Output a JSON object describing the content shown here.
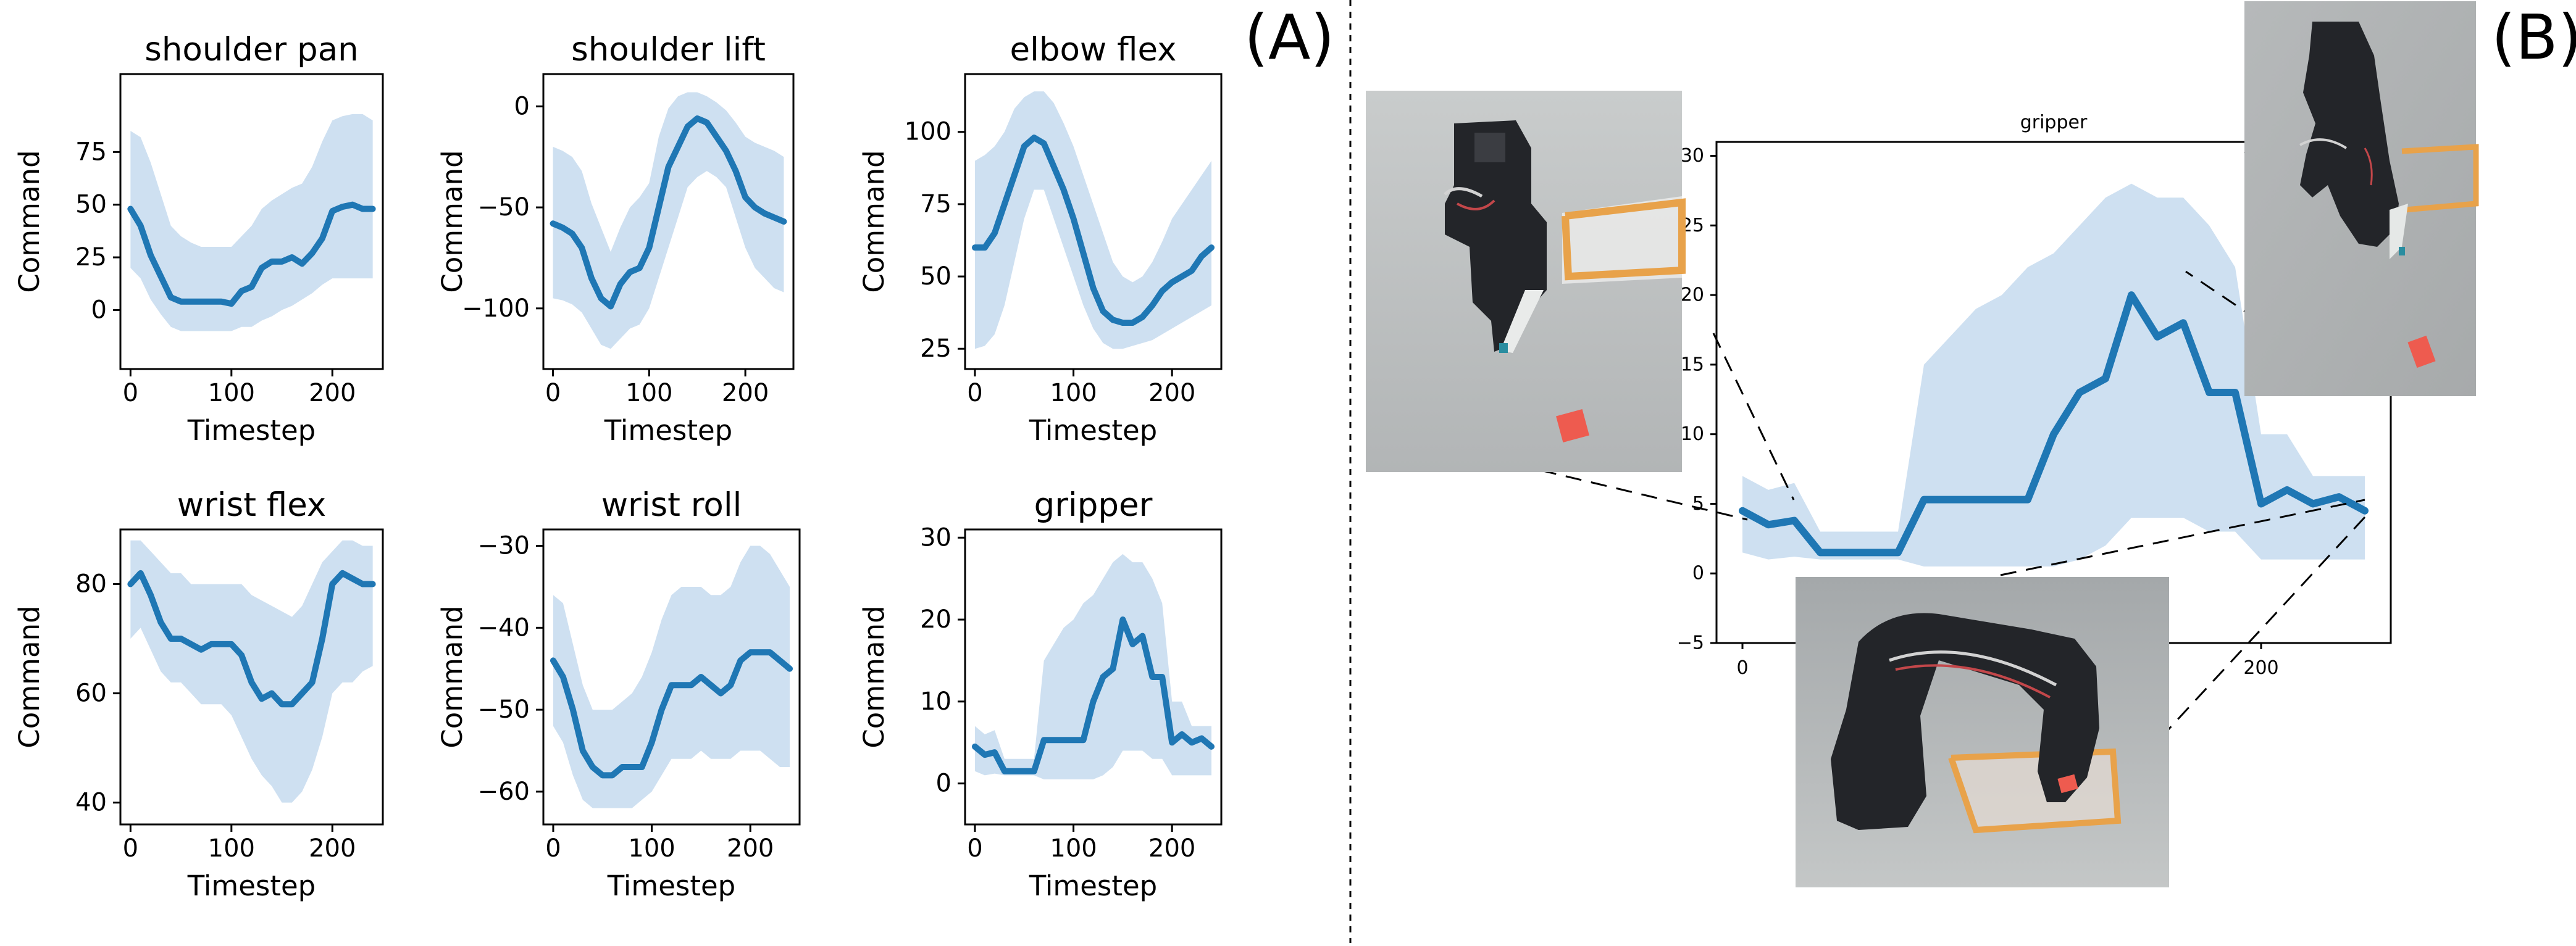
{
  "panel_labels": [
    "(A)",
    "(B)"
  ],
  "photos": [
    "robot-arm-start-photo",
    "robot-arm-grasp-photo",
    "robot-arm-lift-photo"
  ],
  "colors": {
    "line": "#1f77b4",
    "band": "#c6dbef",
    "photo_bg": "#b9bcbc",
    "arm": "#232529",
    "tray": "#e8a24a",
    "block": "#ee5b4f"
  },
  "chart_data": [
    {
      "type": "line",
      "title": "shoulder pan",
      "xlabel": "Timestep",
      "ylabel": "Command",
      "xlim": [
        -10,
        250
      ],
      "ylim": [
        -28,
        112
      ],
      "xticks": [
        0,
        100,
        200
      ],
      "yticks": [
        0,
        25,
        50,
        75
      ],
      "x": [
        0,
        10,
        20,
        30,
        40,
        50,
        60,
        70,
        80,
        90,
        100,
        110,
        120,
        130,
        140,
        150,
        160,
        170,
        180,
        190,
        200,
        210,
        220,
        230,
        240
      ],
      "mean": [
        48,
        40,
        26,
        16,
        6,
        4,
        4,
        4,
        4,
        4,
        3,
        9,
        11,
        20,
        23,
        23,
        25,
        22,
        27,
        34,
        47,
        49,
        50,
        48,
        48
      ],
      "lower": [
        20,
        15,
        5,
        -2,
        -8,
        -10,
        -10,
        -10,
        -10,
        -10,
        -10,
        -8,
        -8,
        -5,
        -3,
        0,
        2,
        5,
        8,
        12,
        15,
        15,
        15,
        15,
        15
      ],
      "upper": [
        85,
        82,
        70,
        55,
        40,
        35,
        32,
        30,
        30,
        30,
        30,
        35,
        40,
        48,
        52,
        55,
        58,
        60,
        68,
        80,
        90,
        92,
        93,
        93,
        90
      ]
    },
    {
      "type": "line",
      "title": "shoulder lift",
      "xlabel": "Timestep",
      "ylabel": "Command",
      "xlim": [
        -10,
        250
      ],
      "ylim": [
        -130,
        16
      ],
      "xticks": [
        0,
        100,
        200
      ],
      "yticks": [
        -100,
        -50,
        0
      ],
      "x": [
        0,
        10,
        20,
        30,
        40,
        50,
        60,
        70,
        80,
        90,
        100,
        110,
        120,
        130,
        140,
        150,
        160,
        170,
        180,
        190,
        200,
        210,
        220,
        230,
        240
      ],
      "mean": [
        -58,
        -60,
        -63,
        -70,
        -85,
        -95,
        -99,
        -88,
        -82,
        -80,
        -70,
        -50,
        -30,
        -20,
        -10,
        -6,
        -8,
        -15,
        -22,
        -32,
        -45,
        -50,
        -53,
        -55,
        -57
      ],
      "lower": [
        -95,
        -96,
        -98,
        -102,
        -110,
        -118,
        -120,
        -115,
        -110,
        -108,
        -100,
        -85,
        -70,
        -55,
        -40,
        -35,
        -32,
        -35,
        -40,
        -55,
        -70,
        -80,
        -85,
        -90,
        -92
      ],
      "upper": [
        -20,
        -22,
        -25,
        -32,
        -48,
        -60,
        -72,
        -60,
        -50,
        -45,
        -38,
        -15,
        -1,
        5,
        7,
        7,
        5,
        2,
        -2,
        -8,
        -15,
        -18,
        -20,
        -22,
        -25
      ]
    },
    {
      "type": "line",
      "title": "elbow flex",
      "xlabel": "Timestep",
      "ylabel": "Command",
      "xlim": [
        -10,
        250
      ],
      "ylim": [
        18,
        120
      ],
      "xticks": [
        0,
        100,
        200
      ],
      "yticks": [
        25,
        50,
        75,
        100
      ],
      "x": [
        0,
        10,
        20,
        30,
        40,
        50,
        60,
        70,
        80,
        90,
        100,
        110,
        120,
        130,
        140,
        150,
        160,
        170,
        180,
        190,
        200,
        210,
        220,
        230,
        240
      ],
      "mean": [
        60,
        60,
        65,
        75,
        85,
        95,
        98,
        96,
        88,
        80,
        70,
        58,
        46,
        38,
        35,
        34,
        34,
        36,
        40,
        45,
        48,
        50,
        52,
        57,
        60
      ],
      "lower": [
        25,
        26,
        30,
        40,
        55,
        70,
        80,
        80,
        70,
        60,
        50,
        40,
        32,
        27,
        25,
        25,
        26,
        27,
        28,
        30,
        32,
        34,
        36,
        38,
        40
      ],
      "upper": [
        90,
        92,
        95,
        100,
        108,
        112,
        114,
        114,
        110,
        103,
        95,
        85,
        75,
        65,
        55,
        50,
        48,
        50,
        55,
        62,
        70,
        75,
        80,
        85,
        90
      ]
    },
    {
      "type": "line",
      "title": "wrist flex",
      "xlabel": "Timestep",
      "ylabel": "Command",
      "xlim": [
        -10,
        250
      ],
      "ylim": [
        36,
        90
      ],
      "xticks": [
        0,
        100,
        200
      ],
      "yticks": [
        40,
        60,
        80
      ],
      "x": [
        0,
        10,
        20,
        30,
        40,
        50,
        60,
        70,
        80,
        90,
        100,
        110,
        120,
        130,
        140,
        150,
        160,
        170,
        180,
        190,
        200,
        210,
        220,
        230,
        240
      ],
      "mean": [
        80,
        82,
        78,
        73,
        70,
        70,
        69,
        68,
        69,
        69,
        69,
        67,
        62,
        59,
        60,
        58,
        58,
        60,
        62,
        70,
        80,
        82,
        81,
        80,
        80
      ],
      "lower": [
        70,
        72,
        68,
        64,
        62,
        62,
        60,
        58,
        58,
        58,
        56,
        52,
        48,
        45,
        43,
        40,
        40,
        42,
        46,
        52,
        60,
        62,
        62,
        64,
        65
      ],
      "upper": [
        88,
        88,
        86,
        84,
        82,
        82,
        80,
        80,
        80,
        80,
        80,
        80,
        78,
        77,
        76,
        75,
        74,
        76,
        80,
        84,
        86,
        88,
        88,
        87,
        87
      ]
    },
    {
      "type": "line",
      "title": "wrist roll",
      "xlabel": "Timestep",
      "ylabel": "Command",
      "xlim": [
        -10,
        250
      ],
      "ylim": [
        -64,
        -28
      ],
      "xticks": [
        0,
        100,
        200
      ],
      "yticks": [
        -60,
        -50,
        -40,
        -30
      ],
      "x": [
        0,
        10,
        20,
        30,
        40,
        50,
        60,
        70,
        80,
        90,
        100,
        110,
        120,
        130,
        140,
        150,
        160,
        170,
        180,
        190,
        200,
        210,
        220,
        230,
        240
      ],
      "mean": [
        -44,
        -46,
        -50,
        -55,
        -57,
        -58,
        -58,
        -57,
        -57,
        -57,
        -54,
        -50,
        -47,
        -47,
        -47,
        -46,
        -47,
        -48,
        -47,
        -44,
        -43,
        -43,
        -43,
        -44,
        -45
      ],
      "lower": [
        -52,
        -54,
        -58,
        -61,
        -62,
        -62,
        -62,
        -62,
        -62,
        -61,
        -60,
        -58,
        -56,
        -56,
        -56,
        -55,
        -56,
        -56,
        -56,
        -55,
        -55,
        -55,
        -56,
        -57,
        -57
      ],
      "upper": [
        -36,
        -37,
        -42,
        -47,
        -50,
        -50,
        -50,
        -49,
        -48,
        -46,
        -43,
        -39,
        -36,
        -35,
        -35,
        -35,
        -36,
        -36,
        -35,
        -32,
        -30,
        -30,
        -31,
        -33,
        -35
      ]
    },
    {
      "type": "line",
      "title": "gripper",
      "xlabel": "Timestep",
      "ylabel": "Command",
      "xlim": [
        -10,
        250
      ],
      "ylim": [
        -5,
        31
      ],
      "xticks": [
        0,
        100,
        200
      ],
      "yticks": [
        0,
        10,
        20,
        30
      ],
      "x": [
        0,
        10,
        20,
        30,
        40,
        50,
        60,
        70,
        80,
        90,
        100,
        110,
        120,
        130,
        140,
        150,
        160,
        170,
        180,
        190,
        200,
        210,
        220,
        230,
        240
      ],
      "mean": [
        4.5,
        3.5,
        3.8,
        1.5,
        1.5,
        1.5,
        1.5,
        5.3,
        5.3,
        5.3,
        5.3,
        5.3,
        10,
        13,
        14,
        20,
        17,
        18,
        13,
        13,
        5,
        6,
        5,
        5.5,
        4.5
      ],
      "lower": [
        1.5,
        1.0,
        1.2,
        1.0,
        1.0,
        1.0,
        1.0,
        0.5,
        0.5,
        0.5,
        0.5,
        0.5,
        0.5,
        1,
        2,
        4,
        4,
        4,
        3,
        3,
        1,
        1,
        1,
        1,
        1
      ],
      "upper": [
        7,
        6,
        6.5,
        3,
        3,
        3,
        3,
        15,
        17,
        19,
        20,
        22,
        23,
        25,
        27,
        28,
        27,
        27,
        25,
        22,
        10,
        10,
        7,
        7,
        7
      ]
    },
    {
      "type": "line",
      "title": "gripper",
      "xlabel": "",
      "ylabel": "",
      "xlim": [
        -10,
        250
      ],
      "ylim": [
        -5,
        31
      ],
      "xticks": [
        0,
        200
      ],
      "yticks": [
        -5,
        0,
        5,
        10,
        15,
        20,
        25,
        30
      ],
      "x": [
        0,
        10,
        20,
        30,
        40,
        50,
        60,
        70,
        80,
        90,
        100,
        110,
        120,
        130,
        140,
        150,
        160,
        170,
        180,
        190,
        200,
        210,
        220,
        230,
        240
      ],
      "mean": [
        4.5,
        3.5,
        3.8,
        1.5,
        1.5,
        1.5,
        1.5,
        5.3,
        5.3,
        5.3,
        5.3,
        5.3,
        10,
        13,
        14,
        20,
        17,
        18,
        13,
        13,
        5,
        6,
        5,
        5.5,
        4.5
      ],
      "lower": [
        1.5,
        1.0,
        1.2,
        1.0,
        1.0,
        1.0,
        1.0,
        0.5,
        0.5,
        0.5,
        0.5,
        0.5,
        0.5,
        1,
        2,
        4,
        4,
        4,
        3,
        3,
        1,
        1,
        1,
        1,
        1
      ],
      "upper": [
        7,
        6,
        6.5,
        3,
        3,
        3,
        3,
        15,
        17,
        19,
        20,
        22,
        23,
        25,
        27,
        28,
        27,
        27,
        25,
        22,
        10,
        10,
        7,
        7,
        7
      ]
    }
  ]
}
